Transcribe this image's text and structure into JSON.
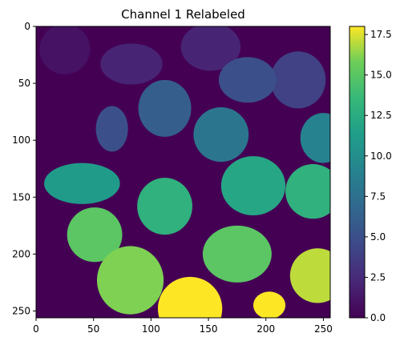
{
  "chart_data": {
    "type": "heatmap",
    "title": "Channel 1 Relabeled",
    "xlabel": "",
    "ylabel": "",
    "xlim": [
      0,
      256
    ],
    "ylim": [
      256,
      0
    ],
    "x_ticks": [
      0,
      50,
      100,
      150,
      200,
      250
    ],
    "y_ticks": [
      0,
      50,
      100,
      150,
      200,
      250
    ],
    "x_tick_labels": [
      "0",
      "50",
      "100",
      "150",
      "200",
      "250"
    ],
    "y_tick_labels": [
      "0",
      "50",
      "100",
      "150",
      "200",
      "250"
    ],
    "colormap": "viridis",
    "background_label": 0,
    "colorbar": {
      "min": 0,
      "max": 18,
      "ticks": [
        0,
        2.5,
        5,
        7.5,
        10,
        12.5,
        15,
        17.5
      ],
      "tick_labels": [
        "0.0",
        "2.5",
        "5.0",
        "7.5",
        "10.0",
        "12.5",
        "15.0",
        "17.5"
      ]
    },
    "regions": [
      {
        "label": 1,
        "center": [
          25,
          20
        ],
        "radii": [
          22,
          22
        ]
      },
      {
        "label": 2,
        "center": [
          83,
          33
        ],
        "radii": [
          27,
          18
        ]
      },
      {
        "label": 2,
        "center": [
          152,
          18
        ],
        "radii": [
          26,
          21
        ]
      },
      {
        "label": 4,
        "center": [
          228,
          47
        ],
        "radii": [
          24,
          25
        ]
      },
      {
        "label": 5,
        "center": [
          184,
          47
        ],
        "radii": [
          25,
          20
        ]
      },
      {
        "label": 5,
        "center": [
          66,
          90
        ],
        "radii": [
          14,
          20
        ]
      },
      {
        "label": 6,
        "center": [
          112,
          72
        ],
        "radii": [
          23,
          25
        ]
      },
      {
        "label": 8,
        "center": [
          161,
          95
        ],
        "radii": [
          24,
          24
        ]
      },
      {
        "label": 9,
        "center": [
          250,
          98
        ],
        "radii": [
          20,
          22
        ]
      },
      {
        "label": 11,
        "center": [
          40,
          138
        ],
        "radii": [
          33,
          18
        ]
      },
      {
        "label": 12,
        "center": [
          189,
          140
        ],
        "radii": [
          28,
          26
        ]
      },
      {
        "label": 13,
        "center": [
          241,
          145
        ],
        "radii": [
          24,
          24
        ]
      },
      {
        "label": 13,
        "center": [
          112,
          158
        ],
        "radii": [
          24,
          25
        ]
      },
      {
        "label": 15,
        "center": [
          51,
          183
        ],
        "radii": [
          24,
          24
        ]
      },
      {
        "label": 15,
        "center": [
          175,
          200
        ],
        "radii": [
          30,
          25
        ]
      },
      {
        "label": 16,
        "center": [
          82,
          223
        ],
        "radii": [
          29,
          30
        ]
      },
      {
        "label": 17,
        "center": [
          245,
          219
        ],
        "radii": [
          24,
          24
        ]
      },
      {
        "label": 18,
        "center": [
          134,
          248
        ],
        "radii": [
          28,
          28
        ]
      },
      {
        "label": 18,
        "center": [
          203,
          245
        ],
        "radii": [
          14,
          12
        ]
      }
    ]
  }
}
